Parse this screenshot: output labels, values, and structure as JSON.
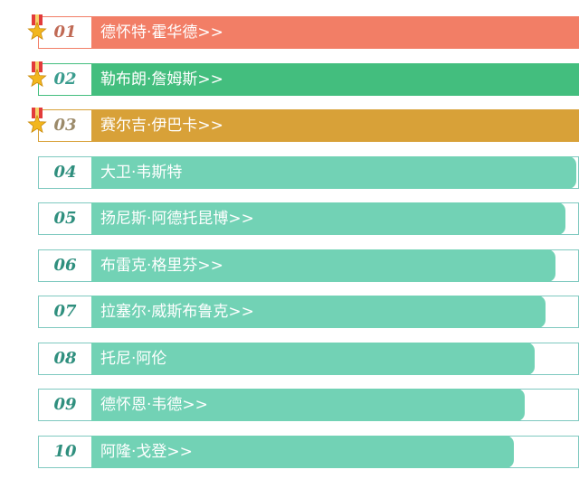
{
  "ranking": {
    "items": [
      {
        "rank": "01",
        "name": "德怀特·霍华德>>",
        "bar_fraction": 1.0,
        "color": "#f27e66",
        "border": "#f27e66",
        "rank_color": "#c06a55",
        "medal": true
      },
      {
        "rank": "02",
        "name": "勒布朗·詹姆斯>>",
        "bar_fraction": 0.98,
        "color": "#43be7e",
        "border": "#43be7e",
        "rank_color": "#3a9c8e",
        "medal": true
      },
      {
        "rank": "03",
        "name": "赛尔吉·伊巴卡>>",
        "bar_fraction": 0.96,
        "color": "#d8a138",
        "border": "#d8a138",
        "rank_color": "#9b8a6a",
        "medal": true
      },
      {
        "rank": "04",
        "name": "大卫·韦斯特",
        "bar_fraction": 0.94,
        "color": "#72d2b5",
        "border": "#7fc9c0",
        "rank_color": "#2f8f7e",
        "medal": false
      },
      {
        "rank": "05",
        "name": "扬尼斯·阿德托昆博>>",
        "bar_fraction": 0.92,
        "color": "#72d2b5",
        "border": "#7fc9c0",
        "rank_color": "#2f8f7e",
        "medal": false
      },
      {
        "rank": "06",
        "name": "布雷克·格里芬>>",
        "bar_fraction": 0.9,
        "color": "#72d2b5",
        "border": "#7fc9c0",
        "rank_color": "#2f8f7e",
        "medal": false
      },
      {
        "rank": "07",
        "name": "拉塞尔·威斯布鲁克>>",
        "bar_fraction": 0.88,
        "color": "#72d2b5",
        "border": "#7fc9c0",
        "rank_color": "#2f8f7e",
        "medal": false
      },
      {
        "rank": "08",
        "name": "托尼·阿伦",
        "bar_fraction": 0.86,
        "color": "#72d2b5",
        "border": "#7fc9c0",
        "rank_color": "#2f8f7e",
        "medal": false
      },
      {
        "rank": "09",
        "name": "德怀恩·韦德>>",
        "bar_fraction": 0.84,
        "color": "#72d2b5",
        "border": "#7fc9c0",
        "rank_color": "#2f8f7e",
        "medal": false
      },
      {
        "rank": "10",
        "name": "阿隆·戈登>>",
        "bar_fraction": 0.82,
        "color": "#72d2b5",
        "border": "#7fc9c0",
        "rank_color": "#2f8f7e",
        "medal": false
      }
    ]
  }
}
